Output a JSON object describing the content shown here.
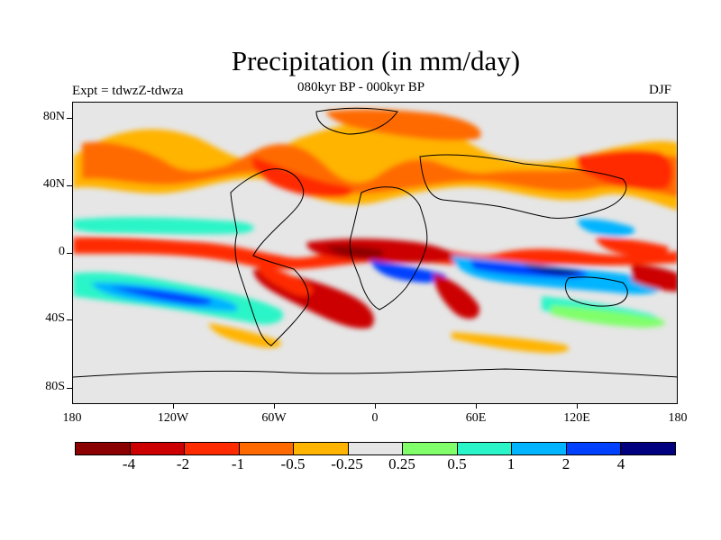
{
  "title": "Precipitation (in mm/day)",
  "subtitle": "080kyr BP - 000kyr BP",
  "experiment": "Expt = tdwzZ-tdwza",
  "season": "DJF",
  "lat_labels": [
    "80N",
    "40N",
    "0",
    "40S",
    "80S"
  ],
  "lon_labels": [
    "180",
    "120W",
    "60W",
    "0",
    "60E",
    "120E",
    "180"
  ],
  "colorbar": {
    "colors": [
      "#8b0000",
      "#cc0000",
      "#ff2a00",
      "#ff6a00",
      "#ffb400",
      "#e6e6e6",
      "#80ff6a",
      "#2af5c8",
      "#00b4ff",
      "#0040ff",
      "#000080"
    ],
    "labels": [
      "-4",
      "-2",
      "-1",
      "-0.5",
      "-0.25",
      "0.25",
      "0.5",
      "1",
      "2",
      "4"
    ]
  }
}
